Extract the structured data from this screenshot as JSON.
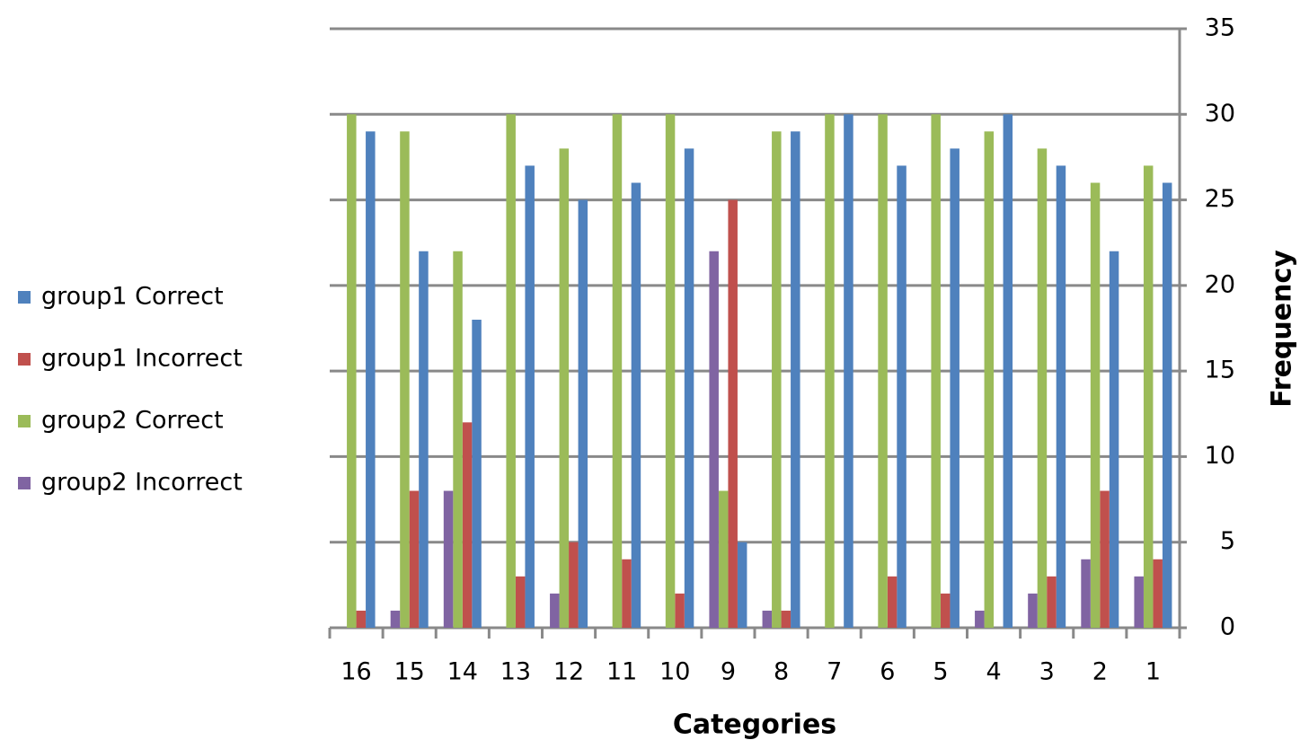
{
  "chart_data": {
    "type": "bar",
    "x_label": "Categories",
    "y_label": "Frequency",
    "categories": [
      "16",
      "15",
      "14",
      "13",
      "12",
      "11",
      "10",
      "9",
      "8",
      "7",
      "6",
      "5",
      "4",
      "3",
      "2",
      "1"
    ],
    "series": [
      {
        "name": "group1 Correct",
        "color": "#4f81bd",
        "values": [
          29,
          22,
          18,
          27,
          25,
          26,
          28,
          5,
          29,
          30,
          27,
          28,
          30,
          27,
          22,
          26
        ]
      },
      {
        "name": "group1 Incorrect",
        "color": "#c0504d",
        "values": [
          1,
          8,
          12,
          3,
          5,
          4,
          2,
          25,
          1,
          0,
          3,
          2,
          0,
          3,
          8,
          4
        ]
      },
      {
        "name": "group2 Correct",
        "color": "#9bbb59",
        "values": [
          30,
          29,
          22,
          30,
          28,
          30,
          30,
          8,
          29,
          30,
          30,
          30,
          29,
          28,
          26,
          27
        ]
      },
      {
        "name": "group2 Incorrect",
        "color": "#8064a2",
        "values": [
          0,
          1,
          8,
          0,
          2,
          0,
          0,
          22,
          1,
          0,
          0,
          0,
          1,
          2,
          4,
          3
        ]
      }
    ],
    "ylim": [
      0,
      35
    ],
    "yticks": [
      0,
      5,
      10,
      15,
      20,
      25,
      30,
      35
    ],
    "grid": true,
    "y_axis_side": "right",
    "legend_position": "left"
  }
}
